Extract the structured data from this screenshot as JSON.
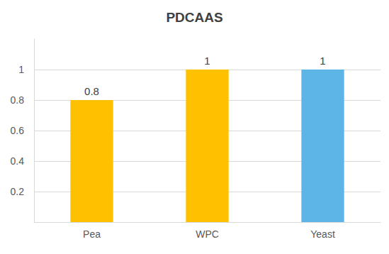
{
  "chart_data": {
    "type": "bar",
    "title": "PDCAAS",
    "categories": [
      "Pea",
      "WPC",
      "Yeast"
    ],
    "values": [
      0.8,
      1,
      1
    ],
    "colors": [
      "#ffc000",
      "#ffc000",
      "#5db4e6"
    ],
    "ylim": [
      0,
      1.2
    ],
    "yticks": [
      0.2,
      0.4,
      0.6,
      0.8,
      1
    ],
    "grid": true,
    "data_labels": true
  }
}
